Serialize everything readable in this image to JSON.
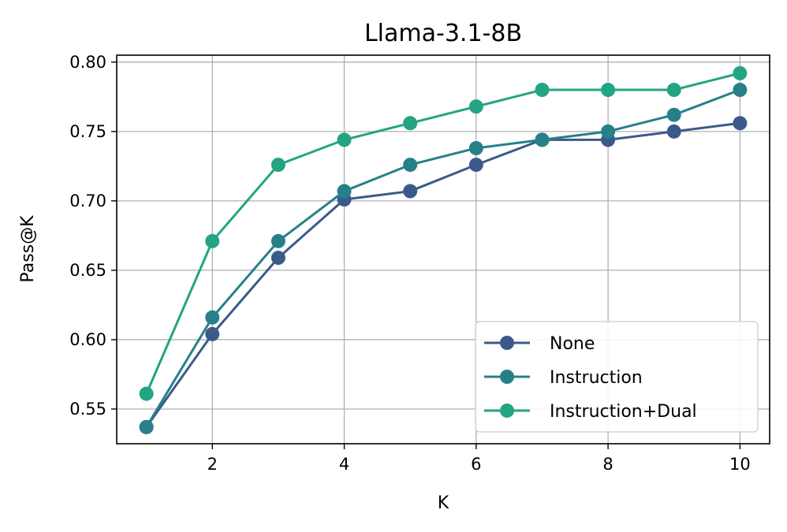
{
  "chart_data": {
    "type": "line",
    "title": "Llama-3.1-8B",
    "xlabel": "K",
    "ylabel": "Pass@K",
    "xlim": [
      0.55,
      10.45
    ],
    "ylim": [
      0.525,
      0.805
    ],
    "xticks": [
      2,
      4,
      6,
      8,
      10
    ],
    "yticks": [
      0.55,
      0.6,
      0.65,
      0.7,
      0.75,
      0.8
    ],
    "ytick_labels": [
      "0.55",
      "0.60",
      "0.65",
      "0.70",
      "0.75",
      "0.80"
    ],
    "grid": true,
    "legend_position": "lower-right",
    "x": [
      1,
      2,
      3,
      4,
      5,
      6,
      7,
      8,
      9,
      10
    ],
    "series": [
      {
        "name": "None",
        "color": "#3b5a8a",
        "values": [
          0.537,
          0.604,
          0.659,
          0.701,
          0.707,
          0.726,
          0.744,
          0.744,
          0.75,
          0.756
        ]
      },
      {
        "name": "Instruction",
        "color": "#26808a",
        "values": [
          0.537,
          0.616,
          0.671,
          0.707,
          0.726,
          0.738,
          0.744,
          0.75,
          0.762,
          0.78
        ]
      },
      {
        "name": "Instruction+Dual",
        "color": "#23a483",
        "values": [
          0.561,
          0.671,
          0.726,
          0.744,
          0.756,
          0.768,
          0.78,
          0.78,
          0.78,
          0.792
        ]
      }
    ]
  }
}
